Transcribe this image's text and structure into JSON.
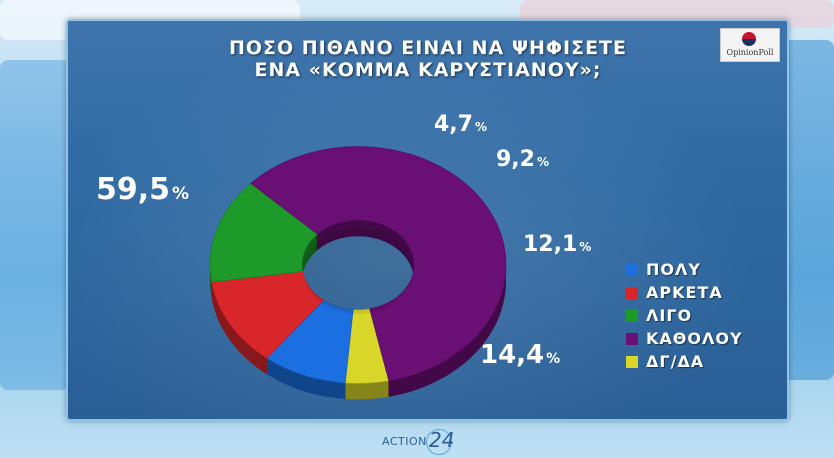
{
  "title_line1": "ΠΟΣΟ ΠΙΘΑΝΟ ΕΙΝΑΙ ΝΑ ΨΗΦΙΣΕΤΕ",
  "title_line2": "ΕΝΑ «ΚΟΜΜΑ ΚΑΡΥΣΤΙΑΝΟΥ»;",
  "logo_text": "OpinionPoll",
  "brand": {
    "text": "ACTION",
    "number": "24"
  },
  "chart_data": {
    "type": "pie",
    "style": "donut",
    "title": "ΠΟΣΟ ΠΙΘΑΝΟ ΕΙΝΑΙ ΝΑ ΨΗΦΙΣΕΤΕ ΕΝΑ «ΚΟΜΜΑ ΚΑΡΥΣΤΙΑΝΟΥ»;",
    "legend_position": "right",
    "unit": "%",
    "slices": [
      {
        "label": "ΠΟΛΥ",
        "value": 9.2,
        "value_text": "9,2",
        "color": "#1b6fe0"
      },
      {
        "label": "ΑΡΚΕΤΑ",
        "value": 12.1,
        "value_text": "12,1",
        "color": "#d9262b"
      },
      {
        "label": "ΛΙΓΟ",
        "value": 14.4,
        "value_text": "14,4",
        "color": "#1e9a2a"
      },
      {
        "label": "ΚΑΘΟΛΟΥ",
        "value": 59.5,
        "value_text": "59,5",
        "color": "#6a0f74"
      },
      {
        "label": "ΔΓ/ΔΑ",
        "value": 4.7,
        "value_text": "4,7",
        "color": "#d7d629"
      }
    ]
  }
}
